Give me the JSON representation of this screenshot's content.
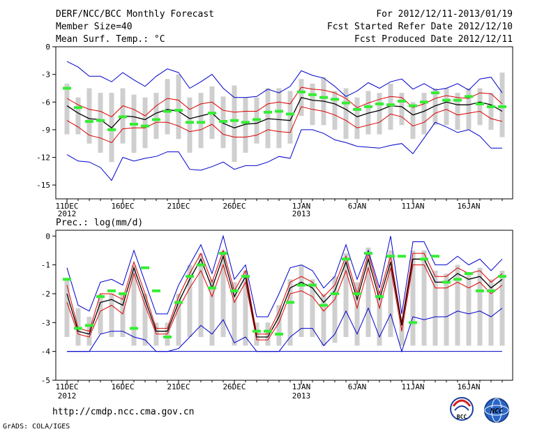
{
  "header": {
    "title": "DERF/NCC/BCC Monthly Forecast",
    "member_size": "Member Size=40",
    "forecast_range": "For 2012/12/11-2013/01/19",
    "started": "Fcst Started Refer Date 2012/12/10",
    "produced": "Fcst Produced Date 2012/12/11"
  },
  "footer": {
    "url": "http://cmdp.ncc.cma.gov.cn",
    "grads": "GrADS: COLA/IGES",
    "logo_bcc": "BCC",
    "logo_ncc": "NCC"
  },
  "colors": {
    "mean": "#000000",
    "spread": "#dd0000",
    "extreme": "#0000cc",
    "box": "#cfcfcf",
    "marker": "#33ee33"
  },
  "chart_data": [
    {
      "type": "line",
      "title": "Mean Surf. Temp.: °C",
      "xlabel": "",
      "ylabel": "",
      "ylim": [
        -16.5,
        0
      ],
      "yticks": [
        0,
        -3,
        -6,
        -9,
        -12,
        -15
      ],
      "x": [
        1,
        2,
        3,
        4,
        5,
        6,
        7,
        8,
        9,
        10,
        11,
        12,
        13,
        14,
        15,
        16,
        17,
        18,
        19,
        20,
        21,
        22,
        23,
        24,
        25,
        26,
        27,
        28,
        29,
        30,
        31,
        32,
        33,
        34,
        35,
        36,
        37,
        38,
        39,
        40
      ],
      "x_tick_labels": [
        {
          "day": 1,
          "label": "11DEC",
          "sub": "2012"
        },
        {
          "day": 6,
          "label": "16DEC",
          "sub": ""
        },
        {
          "day": 11,
          "label": "21DEC",
          "sub": ""
        },
        {
          "day": 16,
          "label": "26DEC",
          "sub": ""
        },
        {
          "day": 22,
          "label": "1JAN",
          "sub": "2013"
        },
        {
          "day": 27,
          "label": "6JAN",
          "sub": ""
        },
        {
          "day": 32,
          "label": "11JAN",
          "sub": ""
        },
        {
          "day": 37,
          "label": "16JAN",
          "sub": ""
        }
      ],
      "series": [
        {
          "name": "ensemble max",
          "values": [
            -1.6,
            -2.2,
            -3.2,
            -3.2,
            -3.8,
            -2.8,
            -3.6,
            -4.3,
            -3.2,
            -2.4,
            -2.8,
            -4.5,
            -3.8,
            -3.0,
            -4.5,
            -5.5,
            -5.5,
            -5.4,
            -4.6,
            -5.0,
            -4.3,
            -2.6,
            -3.1,
            -3.4,
            -4.3,
            -5.4,
            -4.8,
            -3.9,
            -4.5,
            -3.8,
            -3.5,
            -4.6,
            -4.0,
            -4.7,
            -4.5,
            -4.0,
            -4.7,
            -3.5,
            -3.3,
            -5.0
          ]
        },
        {
          "name": "mean +1 std",
          "values": [
            -5.6,
            -6.3,
            -6.8,
            -7.0,
            -7.6,
            -6.4,
            -6.8,
            -7.5,
            -6.4,
            -5.6,
            -5.8,
            -6.8,
            -6.2,
            -6.0,
            -6.9,
            -7.1,
            -7.0,
            -7.0,
            -6.2,
            -6.0,
            -6.2,
            -4.4,
            -4.6,
            -4.7,
            -5.0,
            -5.6,
            -6.6,
            -6.1,
            -5.7,
            -5.4,
            -5.5,
            -6.6,
            -6.2,
            -5.6,
            -5.3,
            -5.5,
            -5.6,
            -5.0,
            -5.1,
            -6.2
          ]
        },
        {
          "name": "ensemble mean",
          "values": [
            -6.4,
            -7.2,
            -7.8,
            -7.9,
            -8.8,
            -7.5,
            -7.6,
            -7.9,
            -7.2,
            -6.8,
            -7.0,
            -7.8,
            -7.5,
            -7.2,
            -8.3,
            -8.8,
            -8.4,
            -8.3,
            -7.8,
            -7.9,
            -8.0,
            -5.5,
            -5.8,
            -5.9,
            -6.2,
            -6.8,
            -7.6,
            -7.2,
            -6.9,
            -6.4,
            -6.5,
            -7.4,
            -7.0,
            -6.4,
            -6.0,
            -6.3,
            -6.3,
            -6.0,
            -6.3,
            -7.0
          ]
        },
        {
          "name": "mean -1 std",
          "values": [
            -8.0,
            -8.7,
            -9.6,
            -9.9,
            -10.4,
            -8.9,
            -8.8,
            -8.8,
            -8.2,
            -8.2,
            -8.6,
            -9.2,
            -9.0,
            -8.4,
            -9.5,
            -9.8,
            -9.8,
            -9.6,
            -9.0,
            -9.2,
            -9.3,
            -6.5,
            -6.8,
            -7.0,
            -7.4,
            -8.0,
            -8.8,
            -8.5,
            -8.2,
            -7.3,
            -7.6,
            -8.6,
            -8.2,
            -7.2,
            -6.8,
            -7.4,
            -7.2,
            -7.0,
            -7.8,
            -8.1
          ]
        },
        {
          "name": "ensemble min",
          "values": [
            -11.7,
            -12.4,
            -12.5,
            -13.1,
            -14.5,
            -12.0,
            -12.4,
            -12.1,
            -11.9,
            -11.4,
            -11.4,
            -13.3,
            -13.4,
            -13.0,
            -12.5,
            -13.3,
            -12.9,
            -12.9,
            -12.5,
            -11.9,
            -12.1,
            -9.0,
            -9.0,
            -9.4,
            -10.1,
            -10.4,
            -10.8,
            -10.9,
            -11.0,
            -10.7,
            -10.5,
            -11.6,
            -9.9,
            -8.2,
            -8.7,
            -9.3,
            -9.0,
            -9.7,
            -11.0,
            -11.0
          ]
        }
      ],
      "boxes": {
        "top": [
          -4.0,
          -5.5,
          -4.5,
          -5.0,
          -5.0,
          -4.5,
          -5.2,
          -5.5,
          -5.0,
          -3.5,
          -3.0,
          -5.5,
          -5.0,
          -4.3,
          -5.4,
          -4.2,
          -5.5,
          -5.5,
          -4.5,
          -4.5,
          -4.8,
          -3.5,
          -4.0,
          -3.3,
          -4.8,
          -4.5,
          -5.5,
          -4.8,
          -5.0,
          -4.0,
          -5.0,
          -6.0,
          -5.0,
          -4.5,
          -4.5,
          -5.0,
          -4.5,
          -4.5,
          -5.0,
          -2.8
        ],
        "bottom": [
          -9.5,
          -9.5,
          -10.5,
          -11.5,
          -12.5,
          -10.5,
          -11.5,
          -11.0,
          -10.0,
          -9.5,
          -10.0,
          -11.5,
          -11.0,
          -10.0,
          -11.0,
          -12.5,
          -11.5,
          -10.5,
          -11.0,
          -11.0,
          -10.5,
          -7.5,
          -8.5,
          -8.5,
          -9.0,
          -10.0,
          -10.0,
          -9.5,
          -9.5,
          -9.0,
          -8.5,
          -10.0,
          -9.5,
          -8.5,
          -8.5,
          -9.0,
          -9.0,
          -8.5,
          -9.0,
          -9.8
        ]
      },
      "markers": [
        -4.5,
        -6.6,
        -8.1,
        -8.0,
        -9.0,
        -7.6,
        -8.4,
        -8.6,
        -7.9,
        -7.0,
        -6.9,
        -8.2,
        -8.2,
        -7.2,
        -8.1,
        -8.0,
        -8.2,
        -7.9,
        -7.1,
        -7.0,
        -7.3,
        -4.9,
        -5.2,
        -5.5,
        -5.7,
        -6.1,
        -6.8,
        -6.5,
        -6.2,
        -6.3,
        -5.9,
        -6.4,
        -6.0,
        -5.0,
        -5.8,
        -5.8,
        -5.4,
        -6.2,
        -6.5,
        -6.5
      ]
    },
    {
      "type": "line",
      "title": "Prec.: log(mm/d)",
      "xlabel": "",
      "ylabel": "",
      "ylim": [
        -5,
        0.2
      ],
      "yticks": [
        0,
        -1,
        -2,
        -3,
        -4,
        -5
      ],
      "x": [
        1,
        2,
        3,
        4,
        5,
        6,
        7,
        8,
        9,
        10,
        11,
        12,
        13,
        14,
        15,
        16,
        17,
        18,
        19,
        20,
        21,
        22,
        23,
        24,
        25,
        26,
        27,
        28,
        29,
        30,
        31,
        32,
        33,
        34,
        35,
        36,
        37,
        38,
        39,
        40
      ],
      "x_tick_labels": [
        {
          "day": 1,
          "label": "11DEC",
          "sub": "2012"
        },
        {
          "day": 6,
          "label": "16DEC",
          "sub": ""
        },
        {
          "day": 11,
          "label": "21DEC",
          "sub": ""
        },
        {
          "day": 16,
          "label": "26DEC",
          "sub": ""
        },
        {
          "day": 22,
          "label": "1JAN",
          "sub": "2013"
        },
        {
          "day": 27,
          "label": "6JAN",
          "sub": ""
        },
        {
          "day": 32,
          "label": "11JAN",
          "sub": ""
        },
        {
          "day": 37,
          "label": "16JAN",
          "sub": ""
        }
      ],
      "series": [
        {
          "name": "ensemble max",
          "values": [
            -1.1,
            -2.4,
            -2.6,
            -1.6,
            -1.5,
            -1.7,
            -0.5,
            -1.6,
            -2.7,
            -2.7,
            -1.7,
            -1.0,
            -0.3,
            -1.3,
            0.0,
            -1.5,
            -1.0,
            -2.8,
            -2.8,
            -2.0,
            -1.1,
            -1.0,
            -1.2,
            -1.8,
            -1.4,
            -0.3,
            -1.5,
            -0.5,
            -1.8,
            0.0,
            -2.7,
            -0.2,
            -0.2,
            -1.0,
            -1.0,
            -0.7,
            -1.0,
            -0.8,
            -1.2,
            -0.8
          ]
        },
        {
          "name": "mean +1 std",
          "values": [
            -1.7,
            -3.2,
            -3.3,
            -2.0,
            -2.0,
            -2.2,
            -0.9,
            -2.0,
            -3.2,
            -3.2,
            -2.1,
            -1.3,
            -0.6,
            -1.6,
            -0.5,
            -1.9,
            -1.2,
            -3.4,
            -3.4,
            -2.6,
            -1.6,
            -1.4,
            -1.6,
            -2.1,
            -1.7,
            -0.7,
            -2.0,
            -0.6,
            -2.0,
            -0.7,
            -3.0,
            -0.6,
            -0.6,
            -1.4,
            -1.4,
            -1.1,
            -1.3,
            -1.2,
            -1.6,
            -1.3
          ]
        },
        {
          "name": "ensemble mean",
          "values": [
            -2.0,
            -3.3,
            -3.4,
            -2.3,
            -2.2,
            -2.4,
            -1.1,
            -2.2,
            -3.3,
            -3.3,
            -2.3,
            -1.5,
            -0.8,
            -1.8,
            -0.7,
            -2.1,
            -1.4,
            -3.5,
            -3.5,
            -2.8,
            -1.8,
            -1.6,
            -1.8,
            -2.3,
            -1.9,
            -0.9,
            -2.2,
            -0.8,
            -2.2,
            -0.9,
            -3.1,
            -0.8,
            -0.8,
            -1.6,
            -1.6,
            -1.3,
            -1.5,
            -1.4,
            -1.8,
            -1.5
          ]
        },
        {
          "name": "mean -1 std",
          "values": [
            -2.3,
            -3.4,
            -3.5,
            -2.6,
            -2.4,
            -2.7,
            -1.3,
            -2.4,
            -3.4,
            -3.4,
            -2.5,
            -1.8,
            -1.2,
            -2.1,
            -1.0,
            -2.3,
            -1.6,
            -3.6,
            -3.6,
            -3.0,
            -2.0,
            -1.9,
            -2.1,
            -2.6,
            -2.2,
            -1.2,
            -2.5,
            -1.1,
            -2.5,
            -1.1,
            -3.3,
            -1.0,
            -1.0,
            -1.8,
            -1.8,
            -1.6,
            -1.8,
            -1.6,
            -2.0,
            -1.7
          ]
        },
        {
          "name": "ensemble min",
          "values": [
            -4.0,
            -4.0,
            -4.0,
            -3.4,
            -3.3,
            -3.3,
            -3.5,
            -3.6,
            -4.0,
            -4.0,
            -3.9,
            -3.5,
            -3.1,
            -3.4,
            -2.9,
            -3.7,
            -3.5,
            -4.0,
            -4.0,
            -4.0,
            -3.5,
            -3.2,
            -3.2,
            -3.8,
            -3.4,
            -2.6,
            -3.4,
            -2.5,
            -3.5,
            -2.7,
            -4.0,
            -2.8,
            -2.9,
            -2.8,
            -2.8,
            -2.6,
            -2.7,
            -2.6,
            -2.8,
            -2.5
          ]
        }
      ],
      "boxes": {
        "top": [
          -1.5,
          -2.5,
          -2.8,
          -2.0,
          -2.0,
          -2.0,
          -1.0,
          -2.0,
          -3.0,
          -3.0,
          -2.0,
          -1.0,
          -0.6,
          -1.5,
          -0.5,
          -1.6,
          -1.2,
          -3.0,
          -3.0,
          -2.4,
          -1.5,
          -1.0,
          -1.5,
          -2.0,
          -1.4,
          -0.6,
          -1.6,
          -0.4,
          -1.9,
          -0.5,
          -2.8,
          -0.5,
          -0.5,
          -1.2,
          -1.3,
          -1.0,
          -1.3,
          -1.1,
          -1.5,
          -1.2
        ],
        "bottom": [
          -3.5,
          -3.8,
          -3.8,
          -3.4,
          -3.5,
          -3.5,
          -3.8,
          -3.8,
          -3.8,
          -3.8,
          -3.8,
          -3.5,
          -3.5,
          -3.8,
          -3.5,
          -3.8,
          -3.8,
          -3.8,
          -3.8,
          -3.8,
          -3.8,
          -3.5,
          -3.5,
          -3.8,
          -3.7,
          -3.5,
          -3.8,
          -3.5,
          -3.8,
          -3.5,
          -3.8,
          -3.8,
          -3.8,
          -3.8,
          -3.8,
          -3.8,
          -3.8,
          -3.8,
          -3.8,
          -3.8
        ]
      },
      "markers": [
        -1.5,
        -3.2,
        -3.1,
        -2.1,
        -1.9,
        -2.0,
        -3.2,
        -1.1,
        -1.9,
        -3.5,
        -2.3,
        -1.4,
        -1.0,
        -1.8,
        -0.6,
        -1.9,
        -1.4,
        -3.3,
        -3.3,
        -3.4,
        -2.3,
        -1.7,
        -1.7,
        -2.4,
        -2.0,
        -0.8,
        -2.0,
        -0.6,
        -2.1,
        -0.7,
        -0.7,
        -3.0,
        -0.8,
        -0.7,
        -1.6,
        -1.5,
        -1.3,
        -1.9,
        -1.9,
        -1.4
      ],
      "baseline": -4.0
    }
  ]
}
